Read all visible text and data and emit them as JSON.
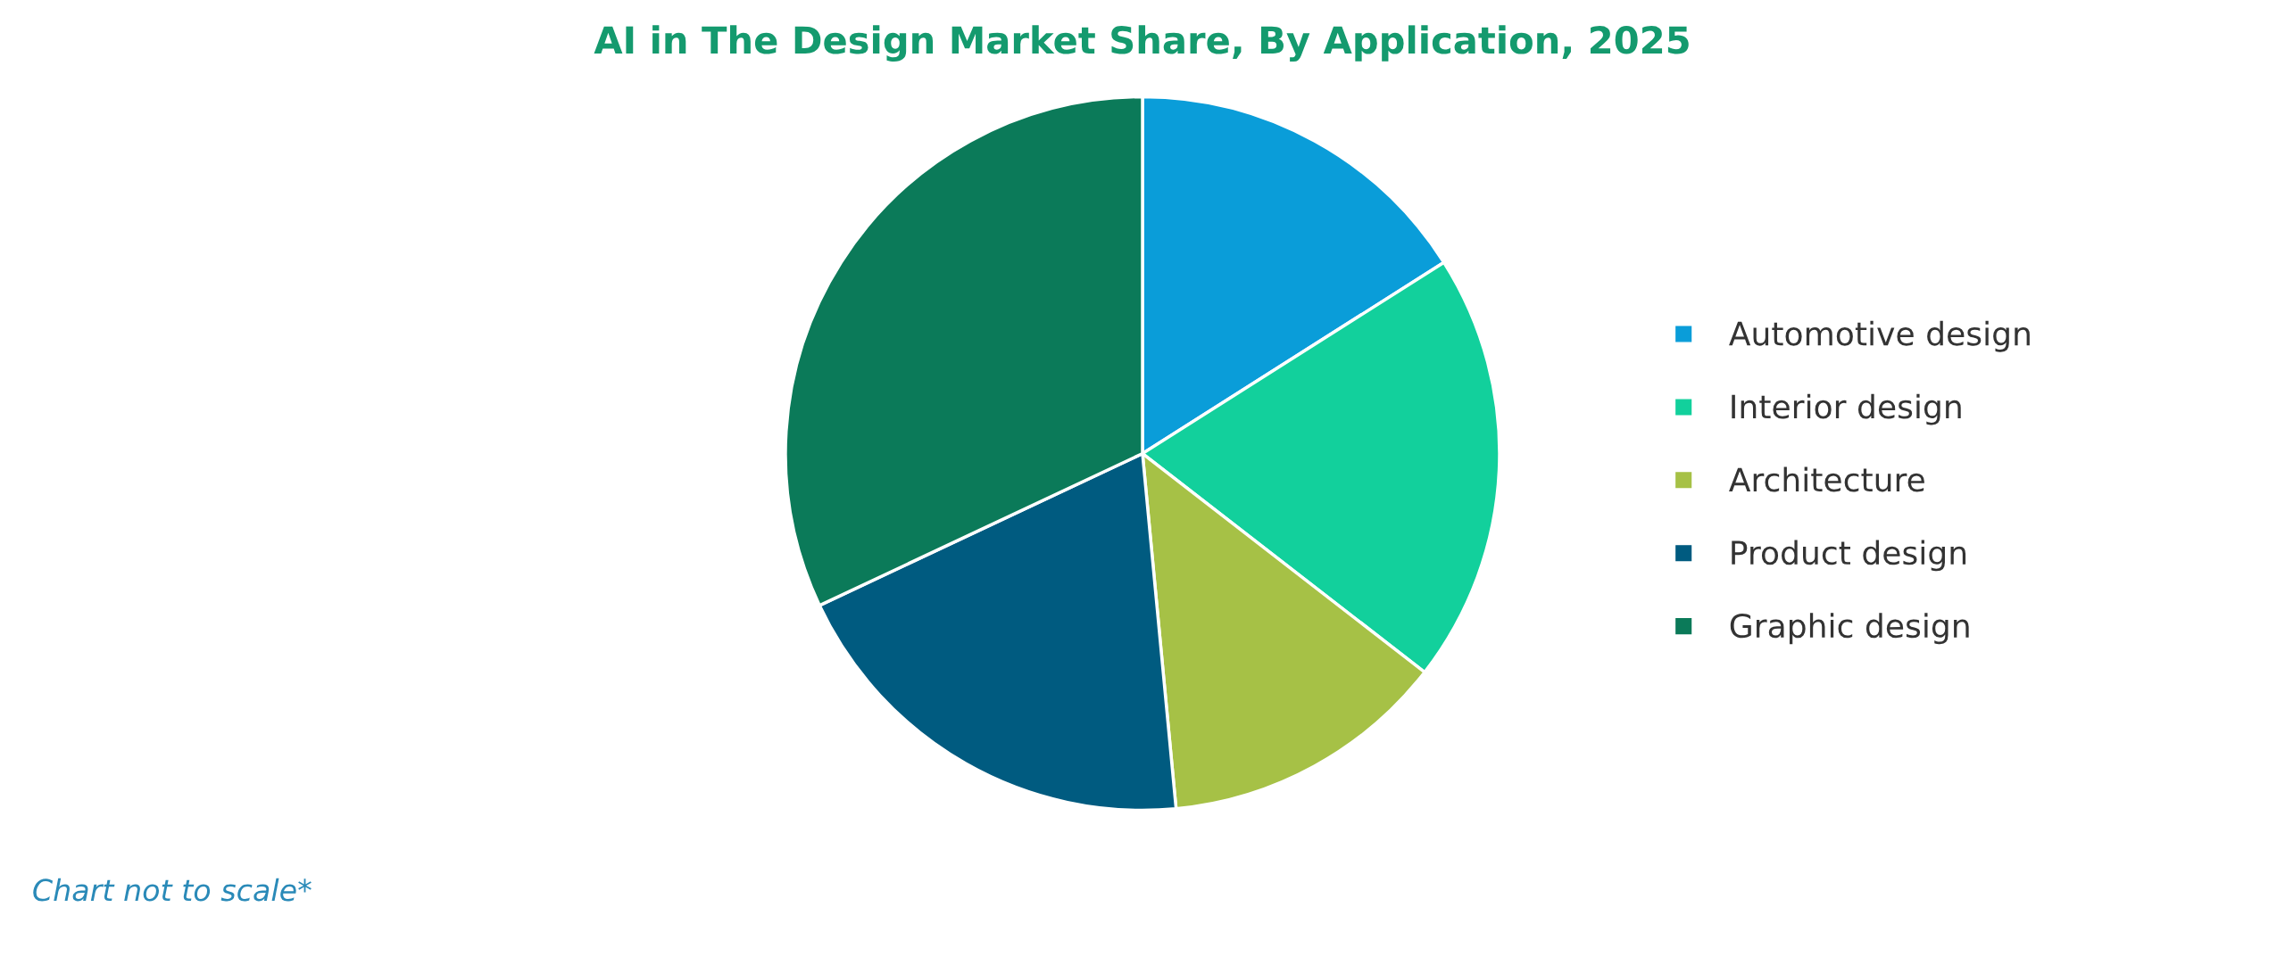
{
  "chart_data": {
    "type": "pie",
    "title": "AI in The Design Market Share, By Application, 2025",
    "categories": [
      "Automotive design",
      "Interior design",
      "Architecture",
      "Product design",
      "Graphic design"
    ],
    "values": [
      16,
      19.5,
      13,
      19.5,
      32
    ],
    "colors": [
      "#0a9dd9",
      "#12d09c",
      "#a6c146",
      "#005b80",
      "#0b7a59"
    ],
    "legend": "right",
    "annotations": [
      "Chart not to scale*"
    ]
  }
}
